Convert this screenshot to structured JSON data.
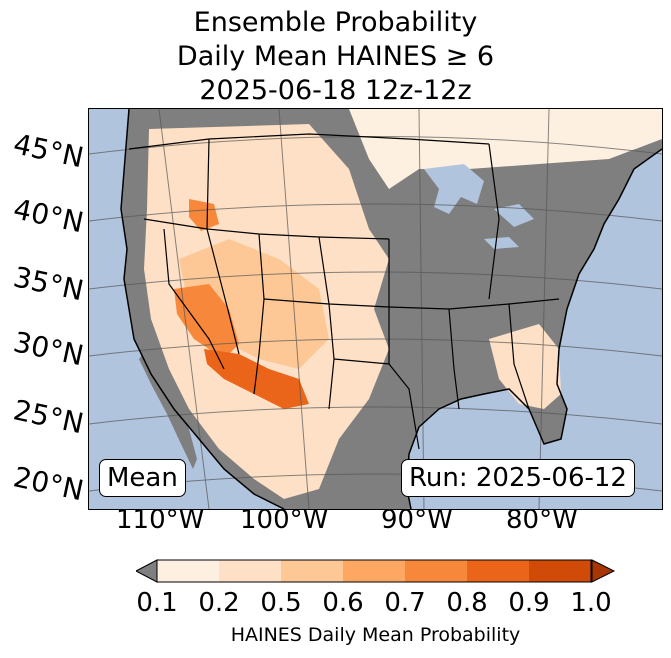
{
  "title": {
    "line1": "Ensemble Probability",
    "line2": "Daily Mean HAINES ≥ 6",
    "line3": "2025-06-18 12z-12z"
  },
  "lat_labels": [
    "45°N",
    "40°N",
    "35°N",
    "30°N",
    "25°N",
    "20°N"
  ],
  "lon_labels": [
    "110°W",
    "100°W",
    "90°W",
    "80°W"
  ],
  "map": {
    "stat_label": "Mean",
    "run_label": "Run: 2025-06-12",
    "colors": {
      "ocean": "#b0c4de",
      "land_low": "#7f7f7f",
      "lake": "#b0c4de"
    }
  },
  "colorbar": {
    "ticks": [
      "0.1",
      "0.2",
      "0.5",
      "0.6",
      "0.7",
      "0.8",
      "0.9",
      "1.0"
    ],
    "colors": [
      "#fef0e1",
      "#fde0c5",
      "#fdc895",
      "#fda762",
      "#f7873a",
      "#ea6419",
      "#d04b08"
    ],
    "under_color": "#7f7f7f",
    "over_color": "#a83605",
    "label": "HAINES Daily Mean Probability"
  }
}
